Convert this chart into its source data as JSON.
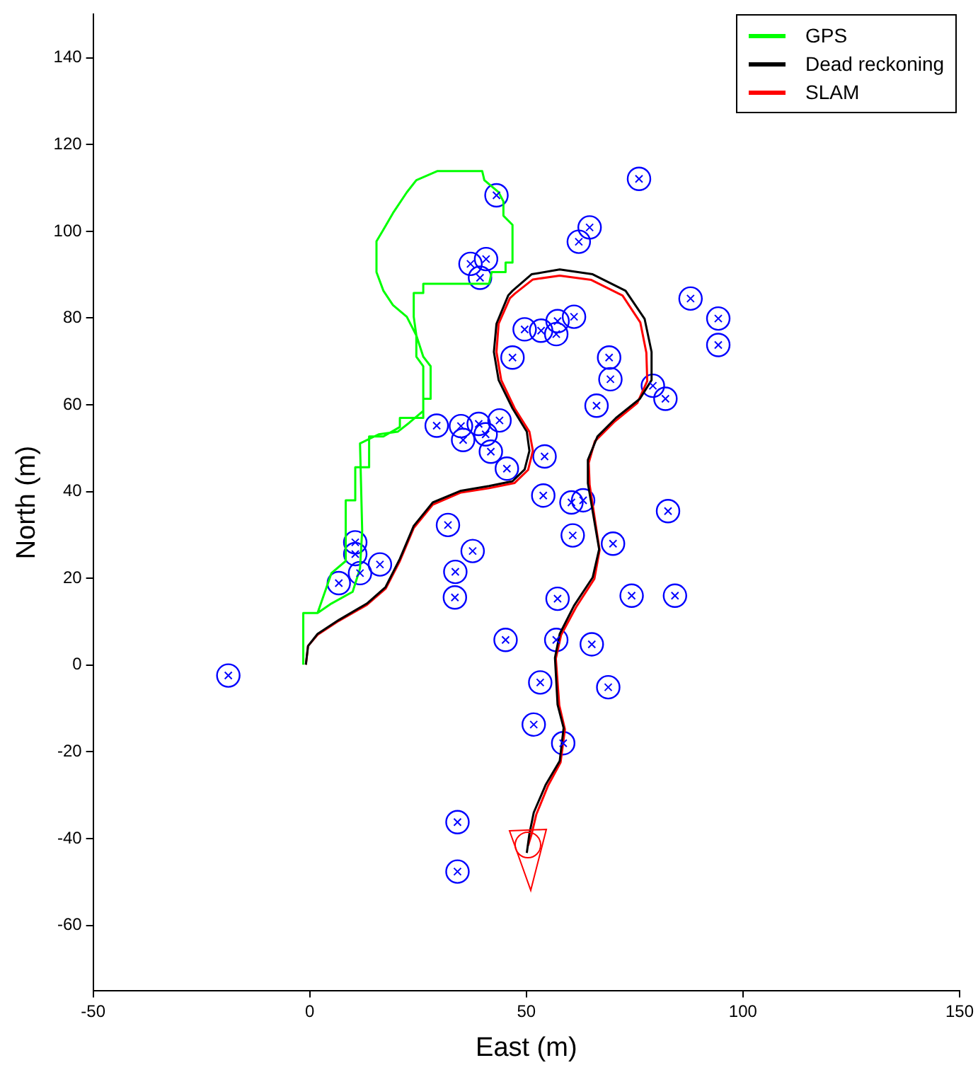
{
  "chart_data": {
    "type": "line",
    "xlabel": "East (m)",
    "ylabel": "North (m)",
    "xlim": [
      -50,
      150
    ],
    "ylim": [
      -75,
      150
    ],
    "xticks": [
      -50,
      0,
      50,
      100,
      150
    ],
    "yticks": [
      -60,
      -40,
      -20,
      0,
      20,
      40,
      60,
      80,
      100,
      120,
      140
    ],
    "grid": false,
    "legend": "top right",
    "series": [
      {
        "name": "GPS",
        "color": "#00ff00",
        "marker": "none",
        "x": [
          -1.5,
          -1.5,
          1.8,
          5.0,
          8.3,
          8.3,
          10.5,
          10.5,
          13.7,
          13.7,
          17.0,
          20.8,
          20.8,
          26.2,
          26.2,
          27.9,
          27.9,
          26.2,
          24.6,
          22.4,
          19.2,
          17.0,
          15.4,
          15.4,
          17.0,
          19.2,
          22.4,
          24.6,
          29.5,
          39.8,
          40.3,
          43.6,
          44.7,
          44.7,
          46.8,
          46.8,
          45.2,
          45.2,
          42.0,
          41.4,
          26.2,
          26.2,
          24.0,
          24.0,
          24.6,
          24.6,
          26.2,
          26.2,
          23.0,
          20.3,
          15.9,
          11.6,
          12.1,
          11.6,
          9.9,
          5.0,
          1.8
        ],
        "values": [
          0.1,
          12.0,
          12.0,
          21.2,
          24.0,
          38.0,
          38.0,
          45.6,
          45.6,
          52.7,
          52.7,
          54.9,
          57.0,
          57.0,
          61.4,
          61.4,
          68.9,
          71.1,
          76.0,
          80.3,
          83.0,
          86.3,
          90.6,
          97.7,
          100.4,
          104.2,
          109.0,
          111.8,
          113.9,
          113.9,
          111.8,
          109.0,
          106.9,
          103.6,
          101.5,
          92.8,
          92.8,
          90.6,
          90.6,
          87.9,
          87.9,
          85.8,
          85.8,
          80.3,
          76.0,
          71.1,
          68.9,
          58.6,
          55.9,
          53.8,
          53.2,
          51.1,
          31.0,
          22.3,
          16.9,
          14.2,
          12.0
        ]
      },
      {
        "name": "Dead reckoning",
        "color": "#000000",
        "marker": "none",
        "x": [
          -0.9,
          -0.4,
          1.8,
          6.7,
          13.2,
          17.5,
          20.8,
          24.0,
          28.4,
          34.9,
          41.4,
          46.8,
          49.6,
          50.7,
          50.1,
          46.8,
          43.6,
          42.5,
          43.1,
          45.8,
          46.8,
          51.2,
          57.7,
          65.3,
          72.9,
          77.3,
          78.9,
          78.9,
          76.2,
          70.7,
          66.4,
          64.2,
          64.2,
          66.8,
          65.3,
          61.0,
          57.7,
          56.6,
          57.2,
          58.6,
          57.7,
          54.5,
          51.7,
          50.7,
          50.1
        ],
        "values": [
          0.1,
          4.4,
          7.2,
          10.4,
          14.2,
          18.0,
          24.5,
          32.1,
          37.5,
          40.2,
          41.3,
          42.4,
          45.1,
          49.4,
          53.8,
          59.2,
          65.7,
          72.2,
          78.7,
          85.2,
          86.3,
          90.1,
          91.2,
          90.1,
          86.3,
          79.8,
          72.2,
          65.7,
          61.4,
          57.0,
          52.7,
          47.3,
          41.9,
          26.7,
          20.2,
          13.7,
          7.2,
          1.7,
          -9.1,
          -14.5,
          -22.1,
          -27.5,
          -34.0,
          -38.9,
          -43.3
        ]
      },
      {
        "name": "SLAM",
        "color": "#ff0000",
        "marker": "none",
        "x": [
          -0.9,
          -0.4,
          1.8,
          6.7,
          13.2,
          17.5,
          20.8,
          24.0,
          28.4,
          34.9,
          41.4,
          47.3,
          50.4,
          51.5,
          50.7,
          47.3,
          44.2,
          43.1,
          43.6,
          46.2,
          47.3,
          51.5,
          57.7,
          65.0,
          72.2,
          76.3,
          77.7,
          77.9,
          75.6,
          70.2,
          65.8,
          64.4,
          64.6,
          66.9,
          65.7,
          61.5,
          58.0,
          56.8,
          57.6,
          58.9,
          57.9,
          55.0,
          52.3,
          51.2,
          50.4
        ],
        "values": [
          0.1,
          4.4,
          7.0,
          10.2,
          13.9,
          17.6,
          24.0,
          31.6,
          37.0,
          39.8,
          40.8,
          42.0,
          45.0,
          49.4,
          53.8,
          59.2,
          65.7,
          72.2,
          78.7,
          84.6,
          85.6,
          88.9,
          89.8,
          88.8,
          85.2,
          79.0,
          72.0,
          65.5,
          60.4,
          56.0,
          51.6,
          46.6,
          41.6,
          26.5,
          19.9,
          13.4,
          6.9,
          1.5,
          -9.3,
          -14.8,
          -22.4,
          -27.8,
          -34.4,
          -39.0,
          -41.6
        ]
      },
      {
        "type": "scatter",
        "marker": "circle",
        "color": "#0000ff",
        "x": [
          76.0,
          64.6,
          62.1,
          43.1,
          37.1,
          40.7,
          39.3,
          87.9,
          49.6,
          53.4,
          57.2,
          56.9,
          61.0,
          46.8,
          69.1,
          69.4,
          66.2,
          79.2,
          82.1,
          29.3,
          34.9,
          39.0,
          43.8,
          35.4,
          40.6,
          41.8,
          45.5,
          54.2,
          53.9,
          60.4,
          63.1,
          82.7,
          94.3,
          94.3,
          60.7,
          70.0,
          37.6,
          57.2,
          74.3,
          84.3,
          45.2,
          56.9,
          65.1,
          53.2,
          68.9,
          51.7,
          58.5,
          34.1,
          34.1,
          31.9,
          33.6,
          33.5,
          10.5,
          10.5,
          11.6,
          16.2,
          6.7,
          -18.8
        ],
        "values": [
          112.1,
          100.9,
          97.6,
          108.3,
          92.5,
          93.6,
          89.3,
          84.5,
          77.4,
          77.1,
          79.3,
          76.3,
          80.3,
          70.9,
          70.9,
          65.9,
          59.8,
          64.4,
          61.4,
          55.2,
          55.1,
          55.6,
          56.4,
          51.9,
          53.2,
          49.2,
          45.3,
          48.1,
          39.1,
          37.5,
          38.0,
          35.5,
          79.9,
          73.8,
          29.9,
          28.0,
          26.3,
          15.3,
          16.0,
          16.0,
          5.8,
          5.8,
          4.8,
          -4.0,
          -5.1,
          -13.7,
          -18.0,
          -36.2,
          -47.6,
          32.3,
          21.5,
          15.6,
          28.3,
          25.6,
          21.2,
          23.2,
          18.9,
          -2.4
        ]
      }
    ]
  }
}
